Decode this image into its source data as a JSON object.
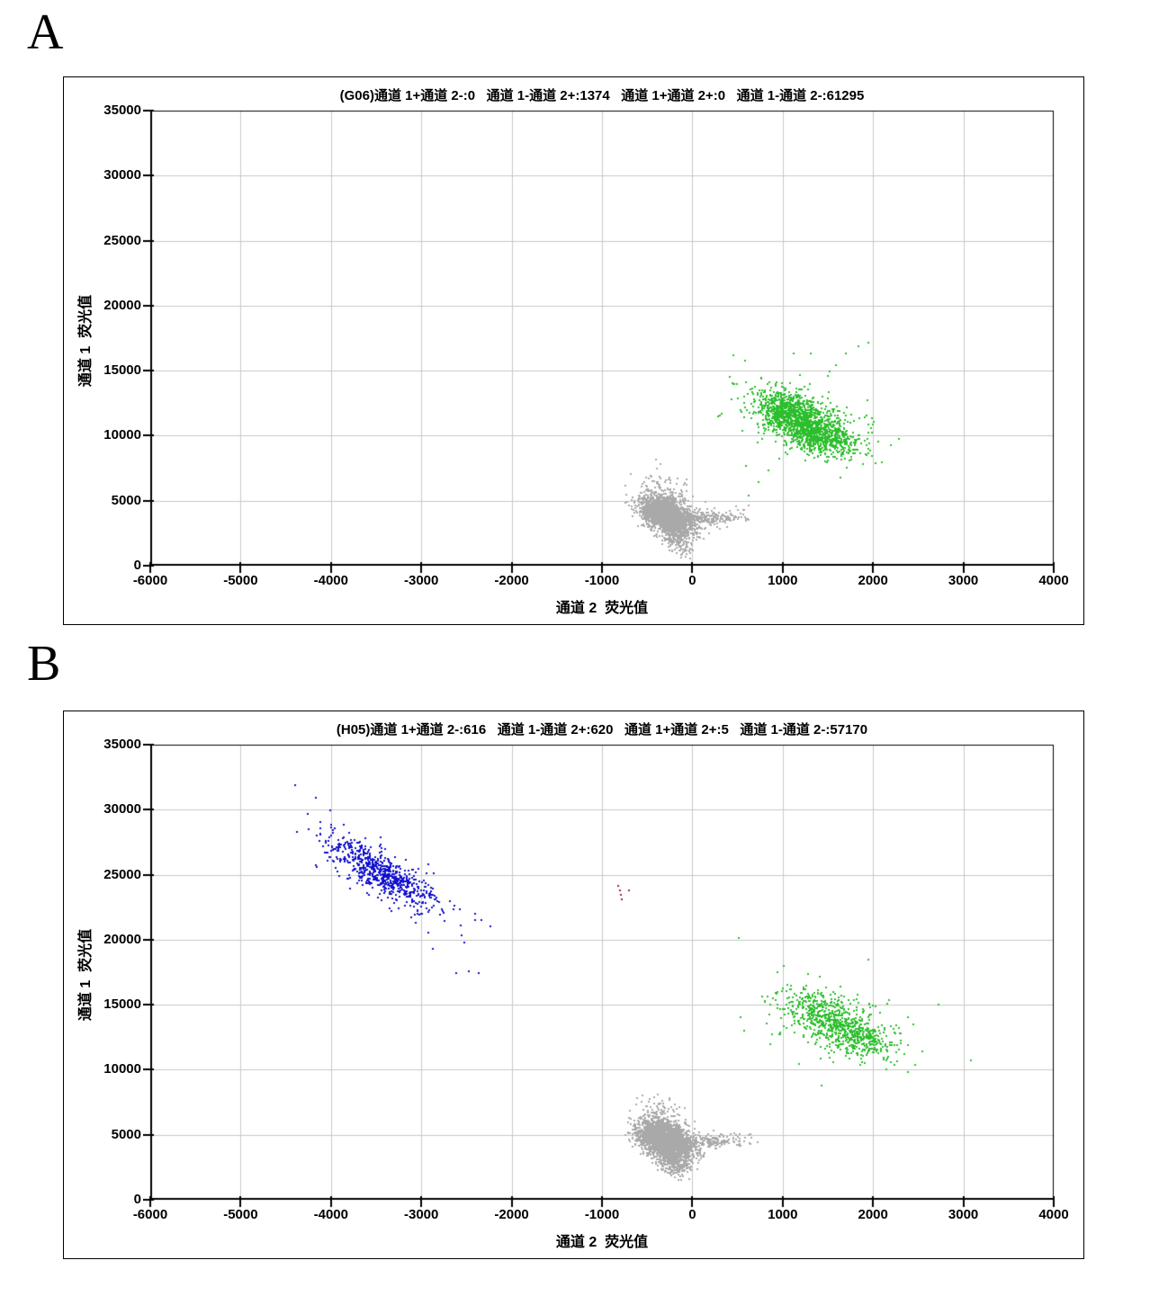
{
  "page_background": "#ffffff",
  "panels": [
    {
      "letter": "A",
      "chart_index": 0
    },
    {
      "letter": "B",
      "chart_index": 1
    }
  ],
  "chart_data": [
    {
      "type": "scatter",
      "well": "G06",
      "title": "(G06)通道 1+通道 2-:0   通道 1-通道 2+:1374   通道 1+通道 2+:0   通道 1-通道 2-:61295",
      "quadrant_counts": {
        "ch1pos_ch2neg": 0,
        "ch1neg_ch2pos": 1374,
        "ch1pos_ch2pos": 0,
        "ch1neg_ch2neg": 61295
      },
      "xlabel": "通道 2  荧光值",
      "ylabel": "通道 1  荧光值",
      "xlim": [
        -6000,
        4000
      ],
      "ylim": [
        0,
        35000
      ],
      "xticks": [
        -6000,
        -5000,
        -4000,
        -3000,
        -2000,
        -1000,
        0,
        1000,
        2000,
        3000,
        4000
      ],
      "yticks": [
        0,
        5000,
        10000,
        15000,
        20000,
        25000,
        30000,
        35000
      ],
      "grid": true,
      "grid_color": "#c8c8c8",
      "axis_color": "#000000",
      "series": [
        {
          "name": "double-negative-droplets",
          "color": "#a9a9a9",
          "blobs": [
            {
              "n": 2400,
              "cx": -270,
              "cy": 3900,
              "sx": 140,
              "sy": 720,
              "rho": -0.45
            },
            {
              "n": 220,
              "cx": -170,
              "cy": 2100,
              "sx": 80,
              "sy": 550,
              "rho": -0.5
            },
            {
              "n": 260,
              "cx": 140,
              "cy": 3600,
              "sx": 230,
              "sy": 330,
              "rho": 0.25
            },
            {
              "n": 70,
              "cx": -330,
              "cy": 6100,
              "sx": 140,
              "sy": 750,
              "rho": -0.3
            }
          ],
          "points": [
            [
              -20,
              950
            ],
            [
              -60,
              1200
            ],
            [
              30,
              3300
            ],
            [
              150,
              4900
            ],
            [
              480,
              4550
            ],
            [
              560,
              4300
            ],
            [
              620,
              4600
            ],
            [
              -390,
              7500
            ],
            [
              -350,
              7800
            ]
          ]
        },
        {
          "name": "channel2-positive-droplets",
          "color": "#2cbe2c",
          "blobs": [
            {
              "n": 850,
              "cx": 1100,
              "cy": 11700,
              "sx": 200,
              "sy": 850,
              "rho": -0.4
            },
            {
              "n": 700,
              "cx": 1420,
              "cy": 9950,
              "sx": 210,
              "sy": 750,
              "rho": -0.35
            },
            {
              "n": 220,
              "cx": 1250,
              "cy": 11100,
              "sx": 400,
              "sy": 1600,
              "rho": -0.4
            }
          ],
          "points": [
            [
              1500,
              14600
            ],
            [
              1590,
              15400
            ],
            [
              1700,
              16300
            ],
            [
              1840,
              16900
            ],
            [
              1950,
              17150
            ],
            [
              1310,
              16350
            ],
            [
              1120,
              16300
            ],
            [
              2010,
              11050
            ],
            [
              1990,
              10250
            ],
            [
              730,
              6400
            ],
            [
              840,
              7300
            ],
            [
              960,
              8200
            ],
            [
              620,
              5400
            ]
          ]
        }
      ]
    },
    {
      "type": "scatter",
      "well": "H05",
      "title": "(H05)通道 1+通道 2-:616   通道 1-通道 2+:620   通道 1+通道 2+:5   通道 1-通道 2-:57170",
      "quadrant_counts": {
        "ch1pos_ch2neg": 616,
        "ch1neg_ch2pos": 620,
        "ch1pos_ch2pos": 5,
        "ch1neg_ch2neg": 57170
      },
      "xlabel": "通道 2  荧光值",
      "ylabel": "通道 1  荧光值",
      "xlim": [
        -6000,
        4000
      ],
      "ylim": [
        0,
        35000
      ],
      "xticks": [
        -6000,
        -5000,
        -4000,
        -3000,
        -2000,
        -1000,
        0,
        1000,
        2000,
        3000,
        4000
      ],
      "yticks": [
        0,
        5000,
        10000,
        15000,
        20000,
        25000,
        30000,
        35000
      ],
      "grid": true,
      "grid_color": "#c8c8c8",
      "axis_color": "#000000",
      "series": [
        {
          "name": "channel1-positive-droplets",
          "color": "#1010cd",
          "blobs": [
            {
              "n": 600,
              "cx": -3430,
              "cy": 25100,
              "sx": 280,
              "sy": 1300,
              "rho": -0.82
            },
            {
              "n": 100,
              "cx": -3400,
              "cy": 25100,
              "sx": 480,
              "sy": 2200,
              "rho": -0.82
            }
          ],
          "points": [
            [
              -4400,
              31900
            ],
            [
              -4170,
              30900
            ],
            [
              -4010,
              29950
            ],
            [
              -2920,
              20550
            ],
            [
              -2870,
              19300
            ],
            [
              -2610,
              17450
            ],
            [
              -2470,
              17550
            ],
            [
              -2360,
              17400
            ],
            [
              -3060,
              21300
            ],
            [
              -2520,
              19800
            ]
          ]
        },
        {
          "name": "double-positive-droplets",
          "color": "#a02838",
          "blobs": [],
          "points": [
            [
              -820,
              24150
            ],
            [
              -800,
              23800
            ],
            [
              -790,
              23450
            ],
            [
              -780,
              23100
            ],
            [
              -700,
              23800
            ]
          ]
        },
        {
          "name": "channel2-positive-droplets",
          "color": "#2cbe2c",
          "blobs": [
            {
              "n": 380,
              "cx": 1450,
              "cy": 14300,
              "sx": 220,
              "sy": 900,
              "rho": -0.4
            },
            {
              "n": 380,
              "cx": 1800,
              "cy": 12600,
              "sx": 230,
              "sy": 850,
              "rho": -0.4
            },
            {
              "n": 110,
              "cx": 1600,
              "cy": 13500,
              "sx": 480,
              "sy": 1700,
              "rho": -0.4
            }
          ],
          "points": [
            [
              1950,
              18500
            ],
            [
              1280,
              17350
            ],
            [
              2450,
              13500
            ],
            [
              1430,
              8800
            ],
            [
              2150,
              10000
            ],
            [
              1050,
              16500
            ]
          ]
        },
        {
          "name": "double-negative-droplets",
          "color": "#a9a9a9",
          "blobs": [
            {
              "n": 2500,
              "cx": -300,
              "cy": 4550,
              "sx": 150,
              "sy": 780,
              "rho": -0.4
            },
            {
              "n": 220,
              "cx": 150,
              "cy": 4500,
              "sx": 240,
              "sy": 320,
              "rho": 0.1
            },
            {
              "n": 60,
              "cx": -350,
              "cy": 6800,
              "sx": 120,
              "sy": 550,
              "rho": -0.2
            },
            {
              "n": 150,
              "cx": -210,
              "cy": 2700,
              "sx": 90,
              "sy": 550,
              "rho": -0.2
            }
          ],
          "points": [
            [
              -150,
              1500
            ],
            [
              -100,
              1800
            ],
            [
              520,
              5050
            ],
            [
              640,
              5050
            ],
            [
              450,
              4800
            ],
            [
              -420,
              7900
            ],
            [
              -380,
              8100
            ]
          ]
        }
      ]
    }
  ]
}
